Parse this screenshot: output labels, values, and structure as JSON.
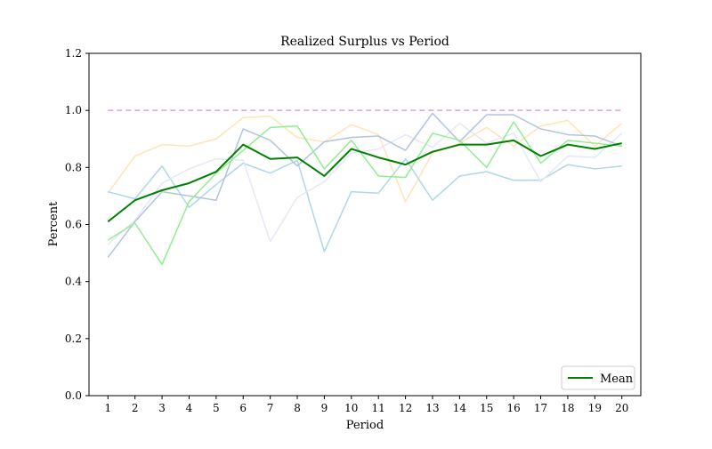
{
  "chart_data": {
    "type": "line",
    "title": "Realized Surplus vs Period",
    "xlabel": "Period",
    "ylabel": "Percent",
    "xlim": [
      0.3,
      20.7
    ],
    "ylim": [
      0.0,
      1.2
    ],
    "x": [
      1,
      2,
      3,
      4,
      5,
      6,
      7,
      8,
      9,
      10,
      11,
      12,
      13,
      14,
      15,
      16,
      17,
      18,
      19,
      20
    ],
    "x_ticks": [
      "1",
      "2",
      "3",
      "4",
      "5",
      "6",
      "7",
      "8",
      "9",
      "10",
      "11",
      "12",
      "13",
      "14",
      "15",
      "16",
      "17",
      "18",
      "19",
      "20"
    ],
    "y_ticks": [
      "0.0",
      "0.2",
      "0.4",
      "0.6",
      "0.8",
      "1.0",
      "1.2"
    ],
    "y_tick_values": [
      0.0,
      0.2,
      0.4,
      0.6,
      0.8,
      1.0,
      1.2
    ],
    "grid": false,
    "legend_position": "lower-right",
    "reference_line": {
      "y": 1.0,
      "style": "dashed",
      "color": "#dda0dd"
    },
    "series": [
      {
        "color": "#ffe4b5",
        "width": 1.5,
        "values": [
          0.71,
          0.84,
          0.88,
          0.875,
          0.9,
          0.975,
          0.98,
          0.905,
          0.89,
          0.95,
          0.915,
          0.68,
          0.85,
          0.885,
          0.94,
          0.875,
          0.945,
          0.965,
          0.875,
          0.955
        ]
      },
      {
        "color": "#add8e6",
        "width": 1.5,
        "values": [
          0.715,
          0.69,
          0.805,
          0.66,
          0.74,
          0.815,
          0.78,
          0.825,
          0.505,
          0.715,
          0.71,
          0.83,
          0.685,
          0.77,
          0.785,
          0.755,
          0.755,
          0.81,
          0.795,
          0.805
        ]
      },
      {
        "color": "#e6e6fa",
        "width": 1.5,
        "values": [
          0.53,
          0.615,
          0.745,
          0.795,
          0.83,
          0.825,
          0.54,
          0.695,
          0.75,
          0.85,
          0.865,
          0.915,
          0.87,
          0.955,
          0.885,
          0.92,
          0.75,
          0.84,
          0.835,
          0.92
        ]
      },
      {
        "color": "#b0c4de",
        "width": 1.5,
        "values": [
          0.485,
          0.61,
          0.715,
          0.7,
          0.685,
          0.935,
          0.895,
          0.805,
          0.89,
          0.905,
          0.91,
          0.86,
          0.99,
          0.89,
          0.985,
          0.985,
          0.935,
          0.915,
          0.91,
          0.875
        ]
      },
      {
        "color": "#90ee90",
        "width": 1.5,
        "values": [
          0.545,
          0.605,
          0.46,
          0.68,
          0.78,
          0.86,
          0.94,
          0.945,
          0.795,
          0.895,
          0.77,
          0.765,
          0.92,
          0.895,
          0.8,
          0.96,
          0.815,
          0.895,
          0.885,
          0.875
        ]
      },
      {
        "name": "Mean",
        "color": "#008000",
        "width": 2,
        "values": [
          0.61,
          0.685,
          0.72,
          0.745,
          0.785,
          0.88,
          0.83,
          0.835,
          0.77,
          0.865,
          0.835,
          0.81,
          0.855,
          0.88,
          0.88,
          0.895,
          0.84,
          0.88,
          0.865,
          0.885
        ]
      }
    ]
  }
}
